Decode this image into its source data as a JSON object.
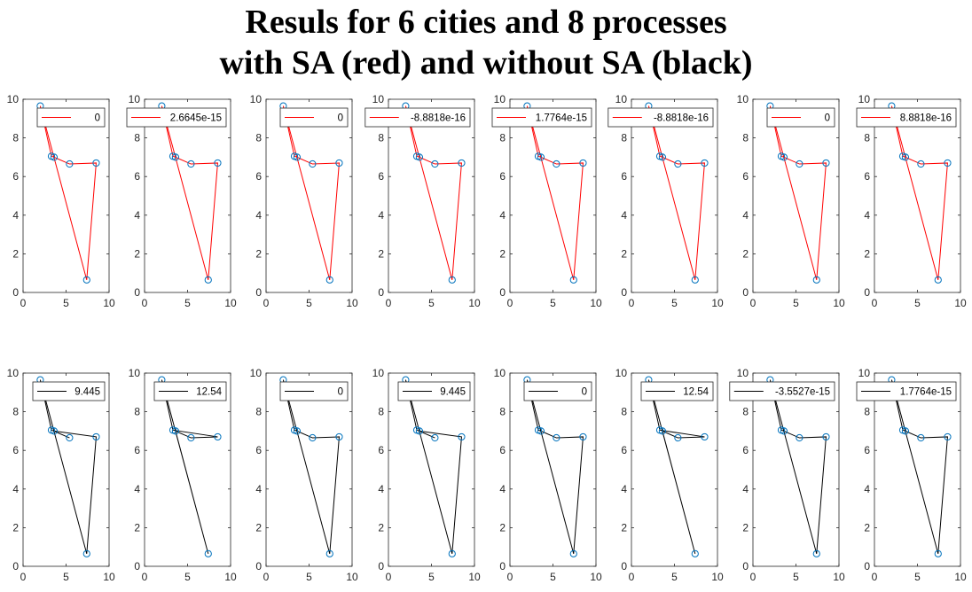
{
  "title": {
    "line1": "Resuls for 6 cities and 8 processes",
    "line2": "with SA (red) and without SA (black)"
  },
  "colors": {
    "sa_path": "#ff0000",
    "no_sa_path": "#000000",
    "city_marker": "#0072bd"
  },
  "chart_data": {
    "type": "line",
    "cities": [
      {
        "x": 2.0,
        "y": 9.65
      },
      {
        "x": 3.3,
        "y": 7.05
      },
      {
        "x": 3.6,
        "y": 7.0
      },
      {
        "x": 5.4,
        "y": 6.65
      },
      {
        "x": 7.4,
        "y": 0.65
      },
      {
        "x": 8.5,
        "y": 6.7
      }
    ],
    "xlim": [
      0,
      10
    ],
    "ylim": [
      0,
      10
    ],
    "xticks": [
      0,
      5,
      10
    ],
    "yticks": [
      0,
      2,
      4,
      6,
      8,
      10
    ],
    "rows": [
      {
        "name": "with SA (red)",
        "color": "#ff0000",
        "panels": [
          {
            "legend": "0",
            "tour": [
              0,
              1,
              2,
              3,
              5,
              4,
              0
            ]
          },
          {
            "legend": "2.6645e-15",
            "tour": [
              0,
              1,
              2,
              3,
              5,
              4,
              0
            ]
          },
          {
            "legend": "0",
            "tour": [
              0,
              1,
              2,
              3,
              5,
              4,
              0
            ]
          },
          {
            "legend": "-8.8818e-16",
            "tour": [
              0,
              1,
              2,
              3,
              5,
              4,
              0
            ]
          },
          {
            "legend": "1.7764e-15",
            "tour": [
              0,
              1,
              2,
              3,
              5,
              4,
              0
            ]
          },
          {
            "legend": "-8.8818e-16",
            "tour": [
              0,
              1,
              2,
              3,
              5,
              4,
              0
            ]
          },
          {
            "legend": "0",
            "tour": [
              0,
              1,
              2,
              3,
              5,
              4,
              0
            ]
          },
          {
            "legend": "8.8818e-16",
            "tour": [
              0,
              1,
              2,
              3,
              5,
              4,
              0
            ]
          }
        ]
      },
      {
        "name": "without SA (black)",
        "color": "#000000",
        "panels": [
          {
            "legend": "9.445",
            "tour": [
              0,
              1,
              3,
              2,
              5,
              4,
              0
            ]
          },
          {
            "legend": "12.54",
            "tour": [
              0,
              1,
              5,
              3,
              2,
              4,
              0
            ]
          },
          {
            "legend": "0",
            "tour": [
              0,
              1,
              2,
              3,
              5,
              4,
              0
            ]
          },
          {
            "legend": "9.445",
            "tour": [
              0,
              1,
              3,
              2,
              5,
              4,
              0
            ]
          },
          {
            "legend": "0",
            "tour": [
              0,
              1,
              2,
              3,
              5,
              4,
              0
            ]
          },
          {
            "legend": "12.54",
            "tour": [
              0,
              1,
              5,
              3,
              2,
              4,
              0
            ]
          },
          {
            "legend": "-3.5527e-15",
            "tour": [
              0,
              1,
              2,
              3,
              5,
              4,
              0
            ]
          },
          {
            "legend": "1.7764e-15",
            "tour": [
              0,
              1,
              2,
              3,
              5,
              4,
              0
            ]
          }
        ]
      }
    ]
  }
}
